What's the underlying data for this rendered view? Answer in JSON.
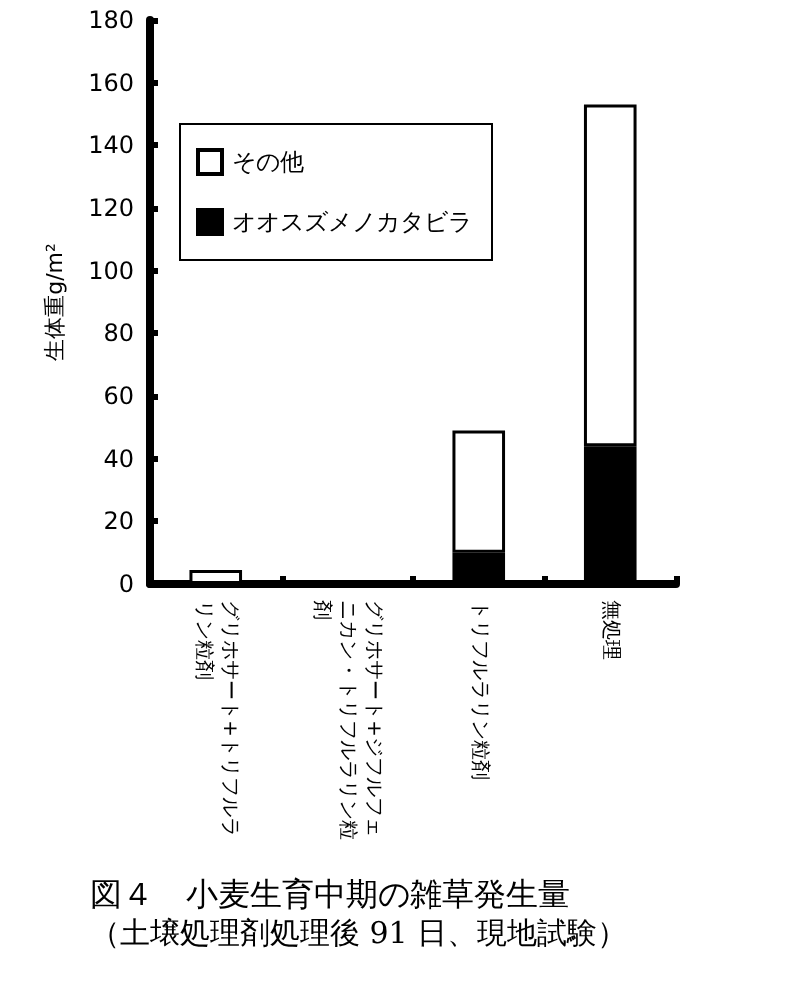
{
  "chart_data": {
    "type": "bar",
    "title": "図４　小麦生育中期の雑草発生量",
    "subtitle": "（土壌処理剤処理後 91 日、現地試験）",
    "ylabel": "生体重g/m²",
    "categories": [
      "グリホサート+トリフルラリン粒剤",
      "グリホサート+ジフルフェニカン・トリフルラリン粒剤",
      "トリフルラリン粒剤",
      "無処理"
    ],
    "stacked": true,
    "series": [
      {
        "name": "オオスズメノカタビラ",
        "color": "#000000",
        "values": [
          0,
          0,
          10,
          44
        ]
      },
      {
        "name": "その他",
        "color": "#ffffff",
        "values": [
          4.5,
          0,
          39,
          109
        ]
      }
    ],
    "ylim": [
      0,
      180
    ],
    "yticks": [
      0,
      20,
      40,
      60,
      80,
      100,
      120,
      140,
      160,
      180
    ],
    "grid": false,
    "legend": "top left"
  }
}
